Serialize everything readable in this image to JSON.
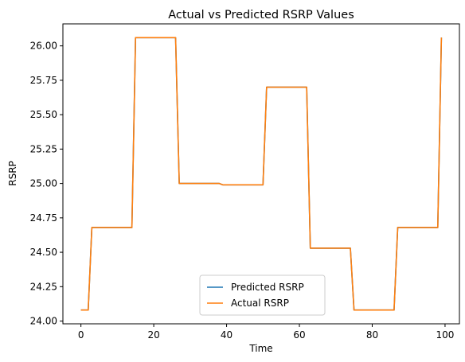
{
  "chart_data": {
    "type": "line",
    "title": "Actual vs Predicted RSRP Values",
    "xlabel": "Time",
    "ylabel": "RSRP",
    "xlim": [
      -4.95,
      103.95
    ],
    "ylim": [
      23.98,
      26.16
    ],
    "xticks": [
      0,
      20,
      40,
      60,
      80,
      100
    ],
    "yticks": [
      24.0,
      24.25,
      24.5,
      24.75,
      25.0,
      25.25,
      25.5,
      25.75,
      26.0
    ],
    "ytick_labels": [
      "24.00",
      "24.25",
      "24.50",
      "24.75",
      "25.00",
      "25.25",
      "25.50",
      "25.75",
      "26.00"
    ],
    "grid": false,
    "legend_position": "lower-center",
    "series": [
      {
        "name": "Predicted RSRP",
        "color": "#1f77b4",
        "x": [
          0,
          2,
          3,
          14,
          15,
          26,
          27,
          38,
          39,
          50,
          51,
          62,
          63,
          74,
          75,
          86,
          87,
          98,
          99
        ],
        "y": [
          24.08,
          24.08,
          24.68,
          24.68,
          26.06,
          26.06,
          25.0,
          25.0,
          24.99,
          24.99,
          25.7,
          25.7,
          24.53,
          24.53,
          24.08,
          24.08,
          24.68,
          24.68,
          26.06
        ]
      },
      {
        "name": "Actual RSRP",
        "color": "#ff7f0e",
        "x": [
          0,
          2,
          3,
          14,
          15,
          26,
          27,
          38,
          39,
          50,
          51,
          62,
          63,
          74,
          75,
          86,
          87,
          98,
          99
        ],
        "y": [
          24.08,
          24.08,
          24.68,
          24.68,
          26.06,
          26.06,
          25.0,
          25.0,
          24.99,
          24.99,
          25.7,
          25.7,
          24.53,
          24.53,
          24.08,
          24.08,
          24.68,
          24.68,
          26.06
        ]
      }
    ]
  }
}
